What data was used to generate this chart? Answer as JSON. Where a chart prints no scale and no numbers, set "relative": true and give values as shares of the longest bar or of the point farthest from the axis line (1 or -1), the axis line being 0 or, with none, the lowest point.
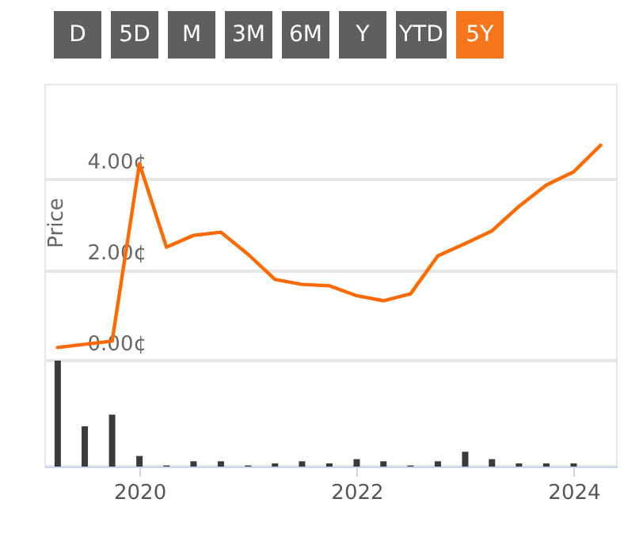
{
  "chart_data": [
    {
      "type": "other",
      "categories": [
        "D",
        "5D",
        "M",
        "3M",
        "6M",
        "Y",
        "YTD",
        "5Y"
      ],
      "colors": [
        "#5f5f5f",
        "#5f5f5f",
        "#5f5f5f",
        "#5f5f5f",
        "#5f5f5f",
        "#5f5f5f",
        "#5f5f5f",
        "#f7761c"
      ]
    },
    {
      "type": "line",
      "ylabel": "Price",
      "xlim": [
        "2019-02-15",
        "2024-05-28"
      ],
      "ylim": [
        0,
        6.1
      ],
      "yticks": [
        {
          "value": 0,
          "label": "0.00¢"
        },
        {
          "value": 2,
          "label": "2.00¢"
        },
        {
          "value": 4,
          "label": "4.00¢"
        }
      ],
      "grid": "y",
      "tick_labels": "y",
      "series": [
        {
          "color": "#ff6a00",
          "x": [
            "2019-04",
            "2019-07",
            "2019-10",
            "2020-01",
            "2020-04",
            "2020-07",
            "2020-10",
            "2021-01",
            "2021-04",
            "2021-07",
            "2021-10",
            "2022-01",
            "2022-04",
            "2022-07",
            "2022-10",
            "2023-01",
            "2023-04",
            "2023-07",
            "2023-10",
            "2024-01",
            "2024-04"
          ],
          "values": [
            0.29,
            0.36,
            0.43,
            4.34,
            2.5,
            2.76,
            2.83,
            2.34,
            1.79,
            1.68,
            1.65,
            1.43,
            1.32,
            1.47,
            2.31,
            2.58,
            2.86,
            3.4,
            3.87,
            4.16,
            4.75
          ]
        }
      ]
    },
    {
      "type": "bar",
      "relative": true,
      "xlim": [
        "2019-02-15",
        "2024-05-28"
      ],
      "xticks": [
        "2020",
        "2022",
        "2024"
      ],
      "tick_labels": "x",
      "series": [
        {
          "color": "#3a3a3f",
          "x": [
            "2019-04",
            "2019-07",
            "2019-10",
            "2020-01",
            "2020-04",
            "2020-07",
            "2020-10",
            "2021-01",
            "2021-04",
            "2021-07",
            "2021-10",
            "2022-01",
            "2022-04",
            "2022-07",
            "2022-10",
            "2023-01",
            "2023-04",
            "2023-07",
            "2023-10",
            "2024-01"
          ],
          "values": [
            1,
            0.38,
            0.49,
            0.1,
            0.01,
            0.05,
            0.05,
            0.01,
            0.03,
            0.05,
            0.03,
            0.07,
            0.05,
            0.01,
            0.05,
            0.14,
            0.07,
            0.03,
            0.03,
            0.03
          ]
        }
      ]
    }
  ]
}
